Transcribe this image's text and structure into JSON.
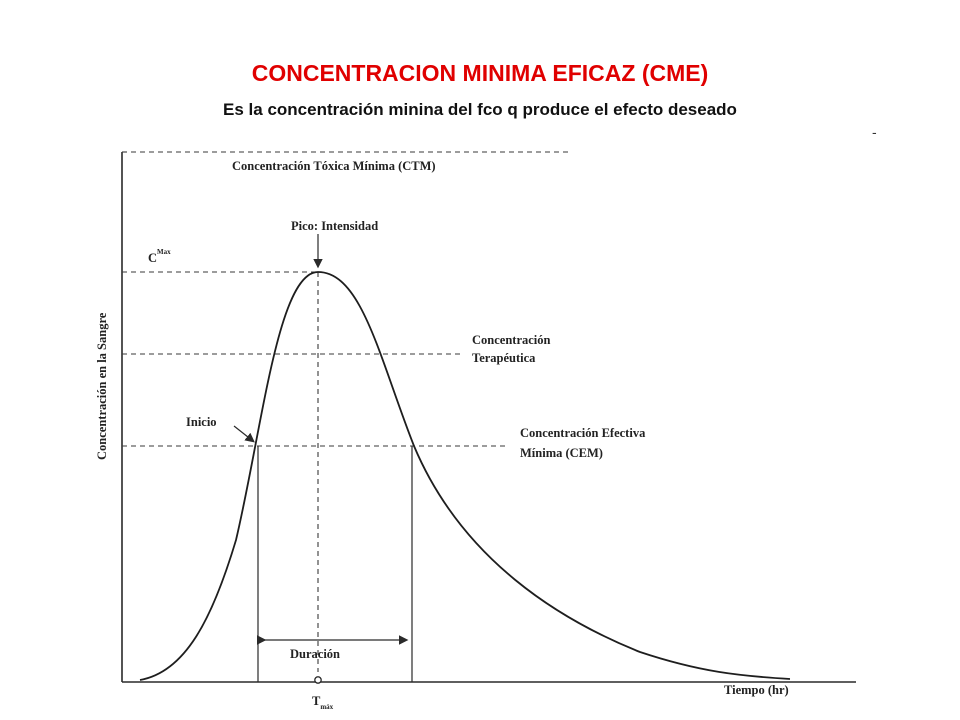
{
  "slide": {
    "title": "CONCENTRACION MINIMA EFICAZ (CME)",
    "subtitle": "Es la concentración minina del fco q produce el efecto deseado",
    "stray_mark": "-"
  },
  "diagram": {
    "labels": {
      "ctm": "Concentración Tóxica Mínima (CTM)",
      "peak": "Pico: Intensidad",
      "cmax_base": "C",
      "cmax_sup": "Max",
      "therapeutic_1": "Concentración",
      "therapeutic_2": "Terapéutica",
      "onset": "Inicio",
      "cem_1": "Concentración Efectiva",
      "cem_2": "Mínima (CEM)",
      "duration": "Duración",
      "x_axis": "Tiempo (hr)",
      "y_axis": "Concentración en la Sangre",
      "tmax_base": "T",
      "tmax_sub": "máx"
    },
    "colors": {
      "title": "#e00000",
      "ink": "#222222"
    }
  }
}
